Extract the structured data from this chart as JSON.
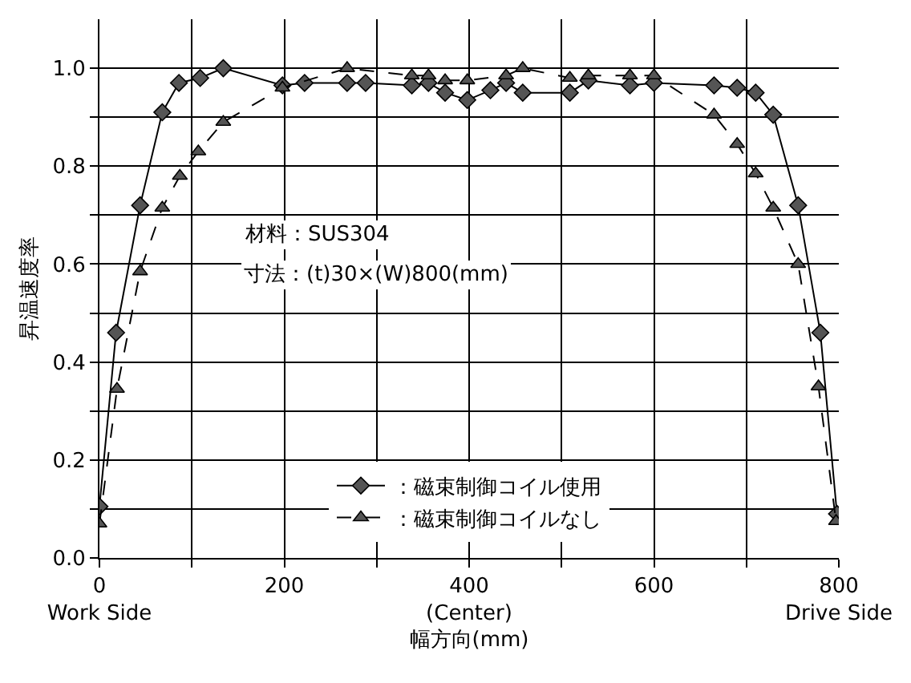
{
  "chart_data": {
    "type": "line",
    "xlabel": "幅方向(mm)",
    "ylabel": "昇温速度率",
    "xlim": [
      0,
      800
    ],
    "ylim": [
      0,
      1.1
    ],
    "xticks": [
      {
        "value": 0,
        "label": "0\nWork Side"
      },
      {
        "value": 100,
        "label": null
      },
      {
        "value": 200,
        "label": "200"
      },
      {
        "value": 300,
        "label": null
      },
      {
        "value": 400,
        "label": "400\n(Center)"
      },
      {
        "value": 500,
        "label": null
      },
      {
        "value": 600,
        "label": "600"
      },
      {
        "value": 700,
        "label": null
      },
      {
        "value": 800,
        "label": "800\nDrive Side"
      }
    ],
    "yticks": [
      {
        "value": 0,
        "label": "0.0"
      },
      {
        "value": 0.1,
        "label": null
      },
      {
        "value": 0.2,
        "label": "0.2"
      },
      {
        "value": 0.3,
        "label": null
      },
      {
        "value": 0.4,
        "label": "0.4"
      },
      {
        "value": 0.5,
        "label": null
      },
      {
        "value": 0.6,
        "label": "0.6"
      },
      {
        "value": 0.7,
        "label": null
      },
      {
        "value": 0.8,
        "label": "0.8"
      },
      {
        "value": 0.9,
        "label": null
      },
      {
        "value": 1.0,
        "label": "1.0"
      }
    ],
    "grid": true,
    "legend": "bottom",
    "annotations": [
      "材料：SUS304",
      "寸法：(t)30×(W)800(mm)"
    ],
    "series": [
      {
        "name": "：磁束制御コイル使用",
        "color": "#555555",
        "marker": "diamond",
        "line_style": "solid",
        "x": [
          0,
          18,
          44,
          68,
          86,
          109,
          134,
          198,
          222,
          268,
          288,
          338,
          356,
          374,
          398,
          423,
          440,
          458,
          509,
          529,
          574,
          600,
          665,
          690,
          710,
          729,
          756,
          780,
          798
        ],
        "values": [
          0.105,
          0.46,
          0.72,
          0.91,
          0.97,
          0.98,
          1.0,
          0.965,
          0.97,
          0.97,
          0.97,
          0.965,
          0.97,
          0.95,
          0.935,
          0.955,
          0.97,
          0.95,
          0.95,
          0.975,
          0.965,
          0.97,
          0.965,
          0.96,
          0.95,
          0.905,
          0.72,
          0.46,
          0.09
        ]
      },
      {
        "name": "：磁束制御コイルなし",
        "color": "#555555",
        "marker": "triangle",
        "line_style": "dashed",
        "x": [
          0,
          19,
          44,
          68,
          87,
          107,
          134,
          198,
          268,
          338,
          356,
          374,
          398,
          440,
          458,
          509,
          529,
          574,
          600,
          665,
          690,
          710,
          729,
          756,
          778,
          797
        ],
        "values": [
          0.07,
          0.345,
          0.585,
          0.715,
          0.78,
          0.83,
          0.89,
          0.96,
          1.0,
          0.985,
          0.985,
          0.975,
          0.975,
          0.985,
          1.0,
          0.98,
          0.985,
          0.985,
          0.985,
          0.905,
          0.845,
          0.785,
          0.715,
          0.6,
          0.35,
          0.075
        ]
      }
    ]
  }
}
